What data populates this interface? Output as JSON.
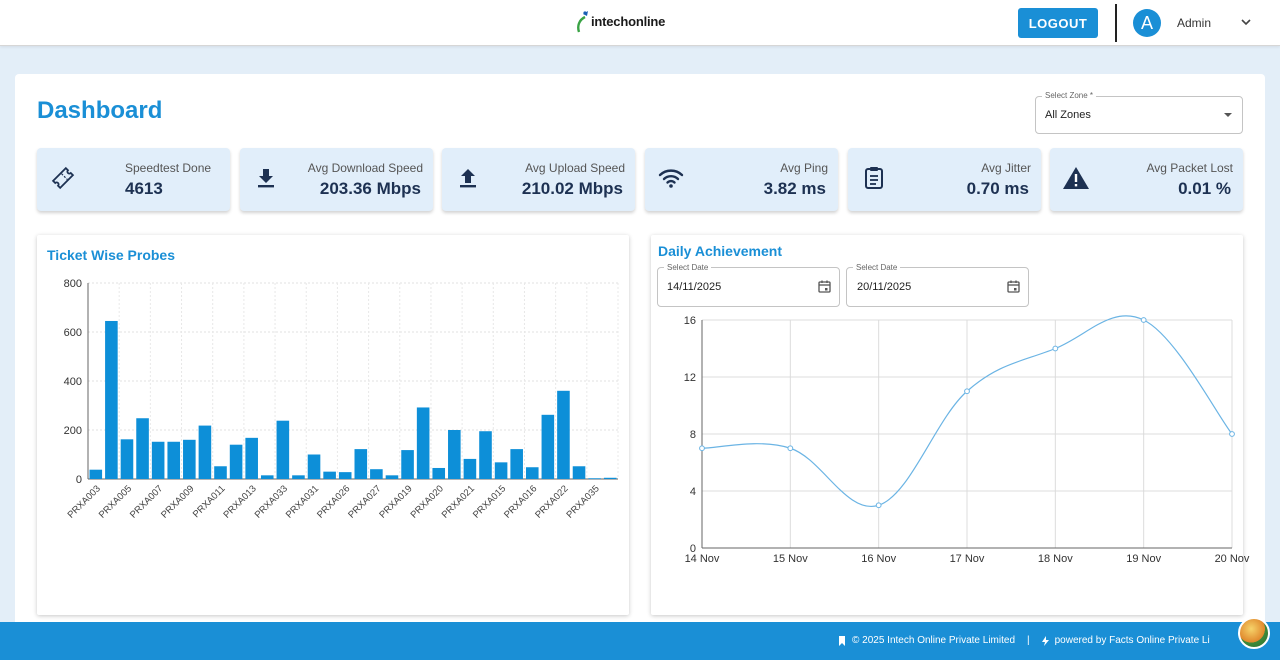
{
  "header": {
    "logo_text": "intechonline",
    "logout_label": "LOGOUT",
    "avatar_letter": "A",
    "user_name": "Admin"
  },
  "dashboard": {
    "title": "Dashboard",
    "zone_select": {
      "label": "Select Zone *",
      "value": "All Zones"
    }
  },
  "stats": [
    {
      "label": "Speedtest Done",
      "value": "4613",
      "icon": "ticket-icon"
    },
    {
      "label": "Avg Download Speed",
      "value": "203.36 Mbps",
      "icon": "download-icon"
    },
    {
      "label": "Avg Upload Speed",
      "value": "210.02 Mbps",
      "icon": "upload-icon"
    },
    {
      "label": "Avg Ping",
      "value": "3.82 ms",
      "icon": "wifi-icon"
    },
    {
      "label": "Avg Jitter",
      "value": "0.70 ms",
      "icon": "clipboard-icon"
    },
    {
      "label": "Avg Packet Lost",
      "value": "0.01 %",
      "icon": "warning-icon"
    }
  ],
  "probes_panel": {
    "title": "Ticket Wise Probes"
  },
  "achievement_panel": {
    "title": "Daily Achievement",
    "start_date": {
      "label": "Select Date",
      "value": "14/11/2025"
    },
    "end_date": {
      "label": "Select Date",
      "value": "20/11/2025"
    }
  },
  "chart_data": [
    {
      "type": "bar",
      "title": "Ticket Wise Probes",
      "ylim": [
        0,
        800
      ],
      "yticks": [
        0,
        200,
        400,
        600,
        800
      ],
      "grid": true,
      "color": "#0d8fd8",
      "tick_labels": [
        "PRXA003",
        "PRXA005",
        "PRXA007",
        "PRXA009",
        "PRXA011",
        "PRXA013",
        "PRXA033",
        "PRXA031",
        "PRXA026",
        "PRXA027",
        "PRXA019",
        "PRXA020",
        "PRXA021",
        "PRXA015",
        "PRXA016",
        "PRXA022",
        "PRXA035"
      ],
      "values": [
        38,
        645,
        162,
        248,
        152,
        152,
        160,
        218,
        52,
        140,
        168,
        15,
        238,
        15,
        100,
        30,
        28,
        122,
        40,
        15,
        118,
        292,
        45,
        200,
        82,
        195,
        68,
        122,
        48,
        262,
        360,
        52,
        3,
        5
      ]
    },
    {
      "type": "line",
      "title": "Daily Achievement",
      "categories": [
        "14 Nov",
        "15 Nov",
        "16 Nov",
        "17 Nov",
        "18 Nov",
        "19 Nov",
        "20 Nov"
      ],
      "values": [
        7,
        7,
        3,
        11,
        14,
        16,
        8
      ],
      "ylim": [
        0,
        16
      ],
      "yticks": [
        0,
        4,
        8,
        12,
        16
      ],
      "grid": true,
      "color": "#6bb4e4"
    }
  ],
  "footer": {
    "copyright": "© 2025 Intech Online Private Limited",
    "separator": "|",
    "powered": "powered by Facts Online Private Li"
  }
}
